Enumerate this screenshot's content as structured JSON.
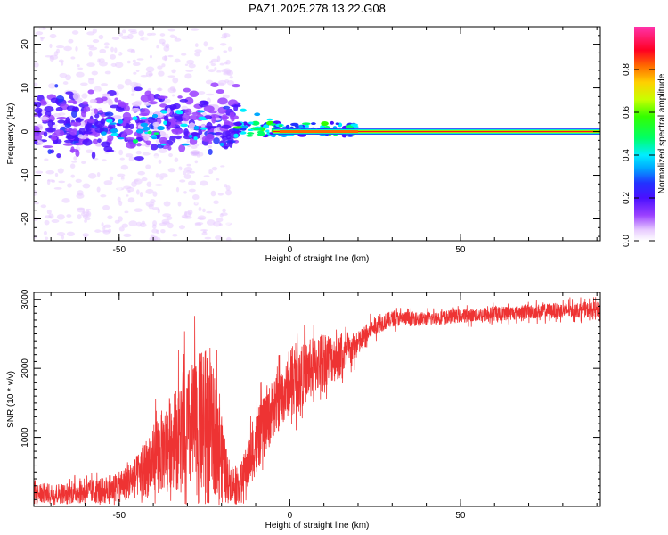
{
  "title": "PAZ1.2025.278.13.22.G08",
  "colors": {
    "snr_line": "#ee3333",
    "colormap": [
      "#ffffff",
      "#e8ccff",
      "#9a40ff",
      "#5a10ff",
      "#2233ff",
      "#00d8ff",
      "#00ff66",
      "#c8ff00",
      "#ffd000",
      "#ff2200",
      "#ff33aa"
    ]
  },
  "chart_data": [
    {
      "type": "heatmap",
      "name": "spectrogram",
      "xlabel": "Height of straight line (km)",
      "ylabel": "Frequency (Hz)",
      "xlim": [
        -75,
        91
      ],
      "ylim": [
        -25,
        24
      ],
      "xticks": [
        -50,
        0,
        50
      ],
      "yticks": [
        -20,
        -10,
        0,
        10,
        20
      ],
      "colorbar": {
        "label": "Normalized spectral amplitude",
        "range": [
          0.0,
          1.0
        ],
        "ticks": [
          "0.0",
          "0.2",
          "0.4",
          "0.6",
          "0.8"
        ]
      },
      "description_bands": [
        {
          "x_range": [
            -75,
            -17
          ],
          "y_center": 2.5,
          "y_spread": 22,
          "intensity": 0.15,
          "kind": "scattered"
        },
        {
          "x_range": [
            -75,
            -15
          ],
          "y_center": 2,
          "y_spread": 5,
          "intensity": 0.3,
          "kind": "blobs"
        },
        {
          "x_range": [
            -16,
            20
          ],
          "y_center": 0.5,
          "y_spread": 1.5,
          "intensity": 0.55,
          "kind": "narrowing"
        },
        {
          "x_range": [
            -5,
            91
          ],
          "y_center": 0,
          "y_spread": 0.4,
          "intensity": 0.95,
          "kind": "carrier"
        }
      ]
    },
    {
      "type": "line",
      "name": "snr",
      "xlabel": "Height of straight line (km)",
      "ylabel": "SNR (10 * v/v)",
      "xlim": [
        -75,
        91
      ],
      "ylim": [
        0,
        3100
      ],
      "xticks": [
        -50,
        0,
        50
      ],
      "yticks": [
        1000,
        2000,
        3000
      ],
      "series": [
        {
          "name": "SNR",
          "x": [
            -75,
            -65,
            -55,
            -50,
            -45,
            -40,
            -35,
            -30,
            -25,
            -22,
            -18,
            -15,
            -10,
            -5,
            0,
            5,
            10,
            15,
            20,
            25,
            30,
            40,
            50,
            60,
            70,
            80,
            91
          ],
          "mean": [
            180,
            190,
            230,
            280,
            430,
            650,
            950,
            1100,
            1200,
            1050,
            400,
            250,
            900,
            1400,
            1750,
            1950,
            2150,
            2150,
            2350,
            2620,
            2720,
            2720,
            2760,
            2790,
            2820,
            2840,
            2850
          ],
          "amp": [
            200,
            200,
            250,
            300,
            400,
            700,
            900,
            1200,
            1500,
            1200,
            400,
            350,
            600,
            600,
            550,
            600,
            550,
            400,
            250,
            180,
            150,
            130,
            130,
            140,
            140,
            150,
            150
          ]
        }
      ]
    }
  ]
}
